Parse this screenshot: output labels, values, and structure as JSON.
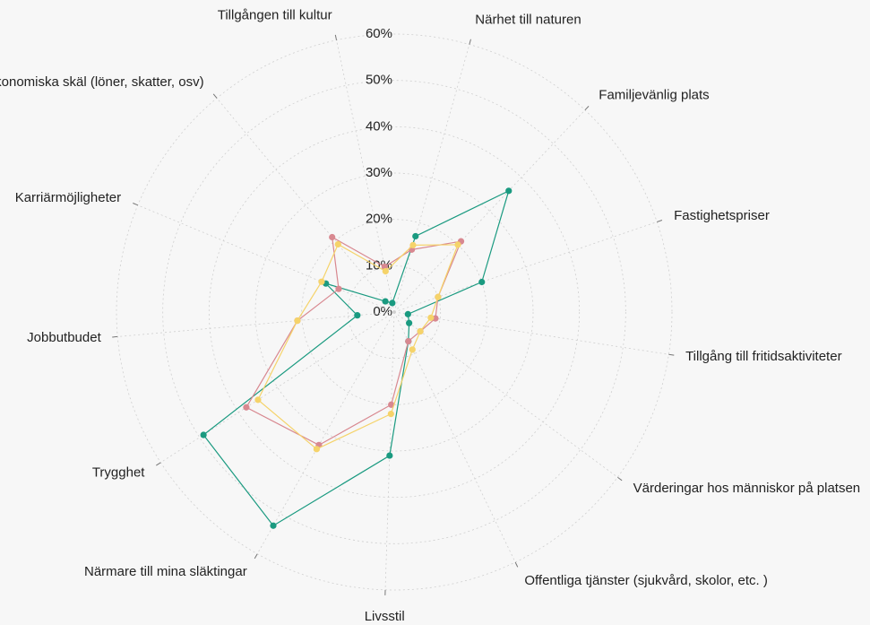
{
  "chart_data": {
    "type": "radar",
    "categories": [
      "Tillgången till kultur",
      "Närhet till naturen",
      "Familjevänlig plats",
      "Fastighetspriser",
      "Tillgång till fritidsaktiviteter",
      "Värderingar hos människor på platsen",
      "Offentliga tjänster (sjukvård, skolor, etc. )",
      "Livsstil",
      "Närmare till mina släktingar",
      "Trygghet",
      "Jobbutbudet",
      "Karriärmöjligheter",
      "Ekonomiska skäl (löner, skatter, osv)"
    ],
    "series": [
      {
        "color": "#1a9a80",
        "values": [
          2,
          17,
          36,
          20,
          3,
          4,
          7,
          31,
          53,
          49,
          8,
          16,
          3
        ]
      },
      {
        "color": "#d88890",
        "values": [
          10,
          14,
          21,
          10,
          9,
          7,
          7,
          20,
          33,
          38,
          21,
          13,
          21
        ]
      },
      {
        "color": "#f5d36a",
        "values": [
          9,
          15,
          20,
          10,
          8,
          7,
          9,
          22,
          34,
          35,
          21,
          17,
          19
        ]
      }
    ],
    "rlim": [
      0,
      60
    ],
    "rticks": [
      {
        "value": 0,
        "label": "0%"
      },
      {
        "value": 10,
        "label": "10%"
      },
      {
        "value": 20,
        "label": "20%"
      },
      {
        "value": 30,
        "label": "30%"
      },
      {
        "value": 40,
        "label": "40%"
      },
      {
        "value": 50,
        "label": "50%"
      },
      {
        "value": 60,
        "label": "60%"
      }
    ],
    "grid": true
  }
}
